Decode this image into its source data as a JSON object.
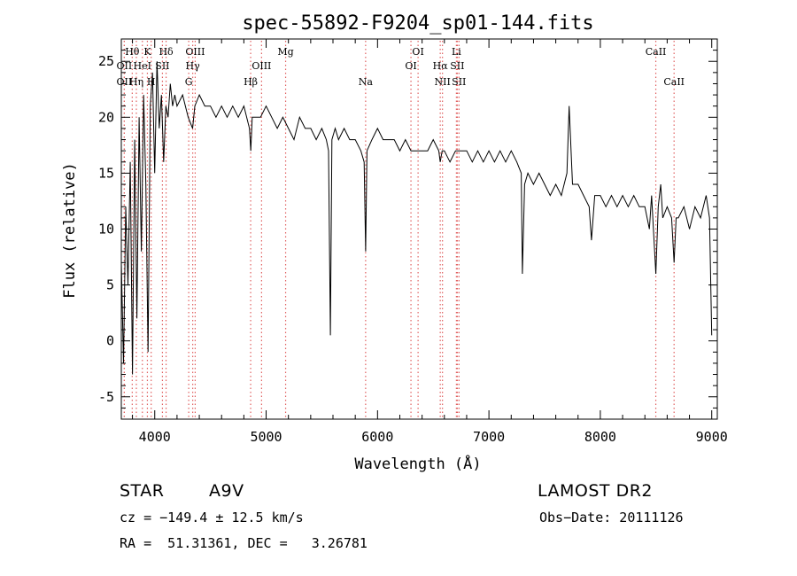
{
  "chart_data": {
    "type": "line",
    "title": "spec-55892-F9204_sp01-144.fits",
    "xlabel": "Wavelength (Å)",
    "ylabel": "Flux (relative)",
    "xlim": [
      3700,
      9050
    ],
    "ylim": [
      -7,
      27
    ],
    "xticks": [
      4000,
      5000,
      6000,
      7000,
      8000,
      9000
    ],
    "yticks": [
      -5,
      0,
      5,
      10,
      15,
      20,
      25
    ],
    "line_color": "#000000",
    "marker_color": "#e06060",
    "grid": false,
    "series": [
      {
        "x": [
          3700,
          3720,
          3740,
          3760,
          3780,
          3800,
          3820,
          3840,
          3860,
          3880,
          3900,
          3920,
          3940,
          3960,
          3980,
          4000,
          4020,
          4040,
          4060,
          4080,
          4100,
          4120,
          4140,
          4160,
          4180,
          4200,
          4250,
          4300,
          4340,
          4360,
          4400,
          4450,
          4500,
          4550,
          4600,
          4650,
          4700,
          4750,
          4800,
          4850,
          4862,
          4875,
          4900,
          4950,
          5000,
          5050,
          5100,
          5150,
          5200,
          5250,
          5300,
          5350,
          5400,
          5450,
          5500,
          5540,
          5560,
          5577,
          5590,
          5620,
          5650,
          5700,
          5750,
          5800,
          5850,
          5880,
          5893,
          5905,
          5950,
          6000,
          6050,
          6100,
          6150,
          6200,
          6250,
          6300,
          6350,
          6400,
          6450,
          6500,
          6550,
          6563,
          6580,
          6600,
          6650,
          6700,
          6750,
          6800,
          6850,
          6900,
          6950,
          7000,
          7050,
          7100,
          7150,
          7200,
          7250,
          7290,
          7300,
          7320,
          7350,
          7400,
          7450,
          7500,
          7550,
          7600,
          7650,
          7700,
          7720,
          7750,
          7800,
          7850,
          7900,
          7920,
          7950,
          8000,
          8050,
          8100,
          8150,
          8200,
          8250,
          8300,
          8350,
          8400,
          8440,
          8460,
          8498,
          8520,
          8542,
          8560,
          8600,
          8640,
          8662,
          8680,
          8700,
          8750,
          8800,
          8850,
          8900,
          8950,
          8980,
          9000
        ],
        "y": [
          7,
          -2,
          12,
          5,
          16,
          -3,
          18,
          2,
          20,
          8,
          22,
          14,
          -1,
          21,
          24,
          15,
          25,
          19,
          22,
          16,
          21,
          20,
          23,
          21,
          22,
          21,
          22,
          20,
          19,
          21,
          22,
          21,
          21,
          20,
          21,
          20,
          21,
          20,
          21,
          19,
          17,
          20,
          20,
          20,
          21,
          20,
          19,
          20,
          19,
          18,
          20,
          19,
          19,
          18,
          19,
          18,
          17,
          0.5,
          18,
          19,
          18,
          19,
          18,
          18,
          17,
          16,
          8,
          17,
          18,
          19,
          18,
          18,
          18,
          17,
          18,
          17,
          17,
          17,
          17,
          18,
          17,
          16,
          17,
          17,
          16,
          17,
          17,
          17,
          16,
          17,
          16,
          17,
          16,
          17,
          16,
          17,
          16,
          15,
          6,
          14,
          15,
          14,
          15,
          14,
          13,
          14,
          13,
          15,
          21,
          14,
          14,
          13,
          12,
          9,
          13,
          13,
          12,
          13,
          12,
          13,
          12,
          13,
          12,
          12,
          10,
          13,
          6,
          12,
          14,
          11,
          12,
          11,
          7,
          11,
          11,
          12,
          10,
          12,
          11,
          13,
          11,
          0.5
        ]
      }
    ],
    "lines": [
      {
        "label": "Hθ",
        "x": 3798,
        "row": 1
      },
      {
        "label": "K",
        "x": 3934,
        "row": 1
      },
      {
        "label": "Hδ",
        "x": 4102,
        "row": 1
      },
      {
        "label": "OIII",
        "x": 4363,
        "row": 1
      },
      {
        "label": "Mg",
        "x": 5175,
        "row": 1
      },
      {
        "label": "OI",
        "x": 6364,
        "row": 1
      },
      {
        "label": "Li",
        "x": 6708,
        "row": 1
      },
      {
        "label": "CaII",
        "x": 8498,
        "row": 1
      },
      {
        "label": "OII",
        "x": 3727,
        "row": 2
      },
      {
        "label": "HeI",
        "x": 3889,
        "row": 2
      },
      {
        "label": "SII",
        "x": 4069,
        "row": 2
      },
      {
        "label": "Hγ",
        "x": 4341,
        "row": 2
      },
      {
        "label": "OIII",
        "x": 4959,
        "row": 2
      },
      {
        "label": "OI",
        "x": 6300,
        "row": 2
      },
      {
        "label": "Hα",
        "x": 6563,
        "row": 2
      },
      {
        "label": "SII",
        "x": 6716,
        "row": 2
      },
      {
        "label": "OII",
        "x": 3727,
        "row": 3
      },
      {
        "label": "Hη",
        "x": 3835,
        "row": 3
      },
      {
        "label": "H",
        "x": 3968,
        "row": 3
      },
      {
        "label": "G",
        "x": 4305,
        "row": 3
      },
      {
        "label": "Hβ",
        "x": 4861,
        "row": 3
      },
      {
        "label": "Na",
        "x": 5893,
        "row": 3
      },
      {
        "label": "NII",
        "x": 6583,
        "row": 3
      },
      {
        "label": "SII",
        "x": 6731,
        "row": 3
      },
      {
        "label": "CaII",
        "x": 8662,
        "row": 3
      }
    ]
  },
  "info": {
    "class": "STAR",
    "subclass": "A9V",
    "survey": "LAMOST DR2",
    "cz": "cz = −149.4 ± 12.5 km/s",
    "obs_date": "Obs−Date: 20111126",
    "radec": "RA =  51.31361, DEC =   3.26781"
  }
}
